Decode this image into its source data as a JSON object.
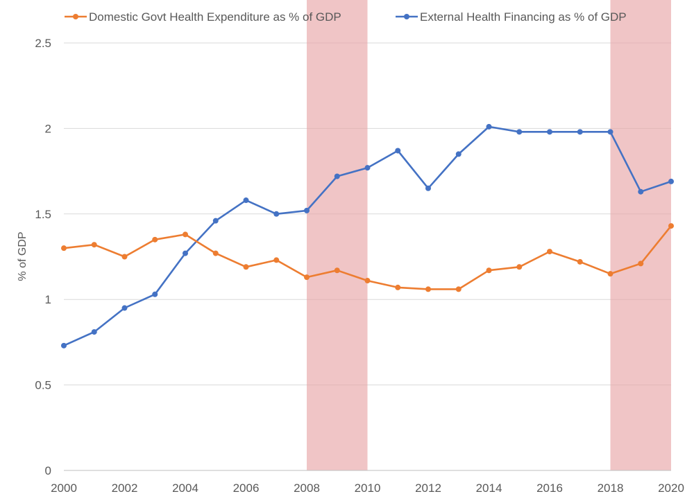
{
  "chart_data": {
    "type": "line",
    "title": "",
    "xlabel": "",
    "ylabel": "% of GDP",
    "x": [
      2000,
      2001,
      2002,
      2003,
      2004,
      2005,
      2006,
      2007,
      2008,
      2009,
      2010,
      2011,
      2012,
      2013,
      2014,
      2015,
      2016,
      2017,
      2018,
      2019,
      2020
    ],
    "xlim": [
      2000,
      2020
    ],
    "ylim": [
      0,
      2.5
    ],
    "x_ticks": [
      "2000",
      "2002",
      "2004",
      "2006",
      "2008",
      "2010",
      "2012",
      "2014",
      "2016",
      "2018",
      "2020"
    ],
    "y_ticks": [
      "0",
      "0.5",
      "1",
      "1.5",
      "2",
      "2.5"
    ],
    "grid": "horizontal",
    "legend_position": "top",
    "shaded_periods": [
      {
        "start": 2008,
        "end": 2010
      },
      {
        "start": 2018,
        "end": 2020
      }
    ],
    "series": [
      {
        "name": "Domestic Govt Health Expenditure as % of GDP",
        "color": "#ED7D31",
        "values": [
          1.3,
          1.32,
          1.25,
          1.35,
          1.38,
          1.27,
          1.19,
          1.23,
          1.13,
          1.17,
          1.11,
          1.07,
          1.06,
          1.06,
          1.17,
          1.19,
          1.28,
          1.22,
          1.15,
          1.21,
          1.43
        ]
      },
      {
        "name": "External Health Financing as % of GDP",
        "color": "#4472C4",
        "values": [
          0.73,
          0.81,
          0.95,
          1.03,
          1.27,
          1.46,
          1.58,
          1.5,
          1.52,
          1.72,
          1.77,
          1.87,
          1.65,
          1.85,
          2.01,
          1.98,
          1.98,
          1.98,
          1.98,
          1.63,
          1.69
        ]
      }
    ],
    "shade_color": "#E8A6A8"
  }
}
